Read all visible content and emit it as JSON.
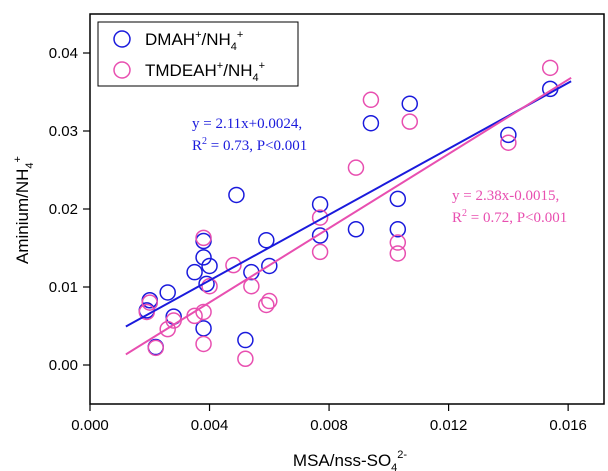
{
  "chart_data": {
    "type": "scatter",
    "xlabel_main": "MSA/nss-SO",
    "xlabel_sub": "4",
    "xlabel_sup": "2-",
    "ylabel_main": "Aminium/NH",
    "ylabel_sub": "4",
    "ylabel_sup": "+",
    "xlim": [
      0.0,
      0.0172
    ],
    "ylim": [
      -0.005,
      0.045
    ],
    "xticks": [
      {
        "value": 0.0,
        "label": "0.000"
      },
      {
        "value": 0.004,
        "label": "0.004"
      },
      {
        "value": 0.008,
        "label": "0.008"
      },
      {
        "value": 0.012,
        "label": "0.012"
      },
      {
        "value": 0.016,
        "label": "0.016"
      }
    ],
    "yticks": [
      {
        "value": 0.0,
        "label": "0.00"
      },
      {
        "value": 0.01,
        "label": "0.01"
      },
      {
        "value": 0.02,
        "label": "0.02"
      },
      {
        "value": 0.03,
        "label": "0.03"
      },
      {
        "value": 0.04,
        "label": "0.04"
      }
    ],
    "legend_position": "top-left",
    "grid": false,
    "series": [
      {
        "name": "DMAH+/NH4+",
        "label_main": "DMAH",
        "label_sup1": "+",
        "label_mid": "/NH",
        "label_sub": "4",
        "label_sup2": "+",
        "color": "#1a1adc",
        "marker": "open-circle",
        "points": [
          [
            0.0019,
            0.007
          ],
          [
            0.002,
            0.0083
          ],
          [
            0.0026,
            0.0093
          ],
          [
            0.0028,
            0.0062
          ],
          [
            0.0022,
            0.0023
          ],
          [
            0.0035,
            0.0119
          ],
          [
            0.0038,
            0.0138
          ],
          [
            0.0038,
            0.0159
          ],
          [
            0.0039,
            0.0104
          ],
          [
            0.004,
            0.0127
          ],
          [
            0.0038,
            0.0047
          ],
          [
            0.0049,
            0.0218
          ],
          [
            0.0052,
            0.0032
          ],
          [
            0.0054,
            0.0119
          ],
          [
            0.0059,
            0.016
          ],
          [
            0.006,
            0.0127
          ],
          [
            0.0077,
            0.0206
          ],
          [
            0.0077,
            0.0166
          ],
          [
            0.0089,
            0.0174
          ],
          [
            0.0094,
            0.031
          ],
          [
            0.0103,
            0.0213
          ],
          [
            0.0103,
            0.0174
          ],
          [
            0.0107,
            0.0335
          ],
          [
            0.014,
            0.0295
          ],
          [
            0.0154,
            0.0354
          ]
        ],
        "fit": {
          "slope": 2.11,
          "intercept": 0.0024,
          "x_range": [
            0.0012,
            0.0161
          ]
        },
        "annotation": {
          "line1": "y = 2.11x+0.0024,",
          "r_main": "R",
          "r_sup": "2",
          "r_rest": " = 0.73, P<0.001"
        }
      },
      {
        "name": "TMDEAH+/NH4+",
        "label_main": "TMDEAH",
        "label_sup1": "+",
        "label_mid": "/NH",
        "label_sub": "4",
        "label_sup2": "+",
        "color": "#e84fb0",
        "marker": "open-circle",
        "points": [
          [
            0.0019,
            0.0068
          ],
          [
            0.002,
            0.008
          ],
          [
            0.0022,
            0.0022
          ],
          [
            0.0026,
            0.0046
          ],
          [
            0.0028,
            0.0057
          ],
          [
            0.0035,
            0.0063
          ],
          [
            0.0038,
            0.0163
          ],
          [
            0.0038,
            0.0068
          ],
          [
            0.0038,
            0.0027
          ],
          [
            0.004,
            0.0101
          ],
          [
            0.0048,
            0.0128
          ],
          [
            0.0052,
            0.0008
          ],
          [
            0.0054,
            0.0101
          ],
          [
            0.0059,
            0.0077
          ],
          [
            0.006,
            0.0082
          ],
          [
            0.0077,
            0.0189
          ],
          [
            0.0077,
            0.0145
          ],
          [
            0.0089,
            0.0253
          ],
          [
            0.0094,
            0.034
          ],
          [
            0.0103,
            0.0157
          ],
          [
            0.0103,
            0.0143
          ],
          [
            0.0107,
            0.0312
          ],
          [
            0.014,
            0.0285
          ],
          [
            0.0154,
            0.0381
          ]
        ],
        "fit": {
          "slope": 2.38,
          "intercept": -0.0015,
          "x_range": [
            0.0012,
            0.0161
          ]
        },
        "annotation": {
          "line1": "y = 2.38x-0.0015,",
          "r_main": "R",
          "r_sup": "2",
          "r_rest": " = 0.72, P<0.001"
        }
      }
    ]
  }
}
